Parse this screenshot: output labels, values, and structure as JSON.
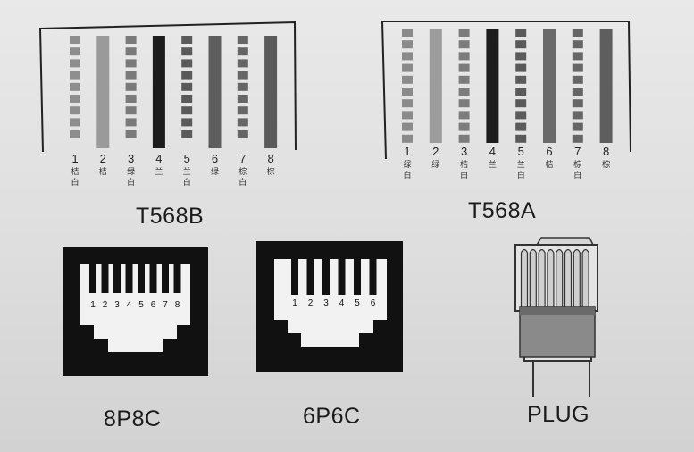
{
  "t568b": {
    "title": "T568B",
    "pins": [
      {
        "num": "1",
        "label": "桔白",
        "striped": true,
        "color": "#8e8e8e"
      },
      {
        "num": "2",
        "label": "桔",
        "striped": false,
        "color": "#9a9a9a"
      },
      {
        "num": "3",
        "label": "绿白",
        "striped": true,
        "color": "#7a7a7a"
      },
      {
        "num": "4",
        "label": "兰",
        "striped": false,
        "color": "#1c1c1c"
      },
      {
        "num": "5",
        "label": "兰白",
        "striped": true,
        "color": "#5a5a5a"
      },
      {
        "num": "6",
        "label": "绿",
        "striped": false,
        "color": "#5e5e5e"
      },
      {
        "num": "7",
        "label": "棕白",
        "striped": true,
        "color": "#666666"
      },
      {
        "num": "8",
        "label": "棕",
        "striped": false,
        "color": "#5a5a5a"
      }
    ]
  },
  "t568a": {
    "title": "T568A",
    "pins": [
      {
        "num": "1",
        "label": "绿白",
        "striped": true,
        "color": "#8a8a8a"
      },
      {
        "num": "2",
        "label": "绿",
        "striped": false,
        "color": "#9c9c9c"
      },
      {
        "num": "3",
        "label": "桔白",
        "striped": true,
        "color": "#7c7c7c"
      },
      {
        "num": "4",
        "label": "兰",
        "striped": false,
        "color": "#1c1c1c"
      },
      {
        "num": "5",
        "label": "兰白",
        "striped": true,
        "color": "#5a5a5a"
      },
      {
        "num": "6",
        "label": "桔",
        "striped": false,
        "color": "#6a6a6a"
      },
      {
        "num": "7",
        "label": "棕白",
        "striped": true,
        "color": "#666666"
      },
      {
        "num": "8",
        "label": "棕",
        "striped": false,
        "color": "#5e5e5e"
      }
    ]
  },
  "jack8": {
    "title": "8P8C",
    "pins": [
      "1",
      "2",
      "3",
      "4",
      "5",
      "6",
      "7",
      "8"
    ]
  },
  "jack6": {
    "title": "6P6C",
    "pins": [
      "1",
      "2",
      "3",
      "4",
      "5",
      "6"
    ]
  },
  "plug": {
    "title": "PLUG"
  }
}
